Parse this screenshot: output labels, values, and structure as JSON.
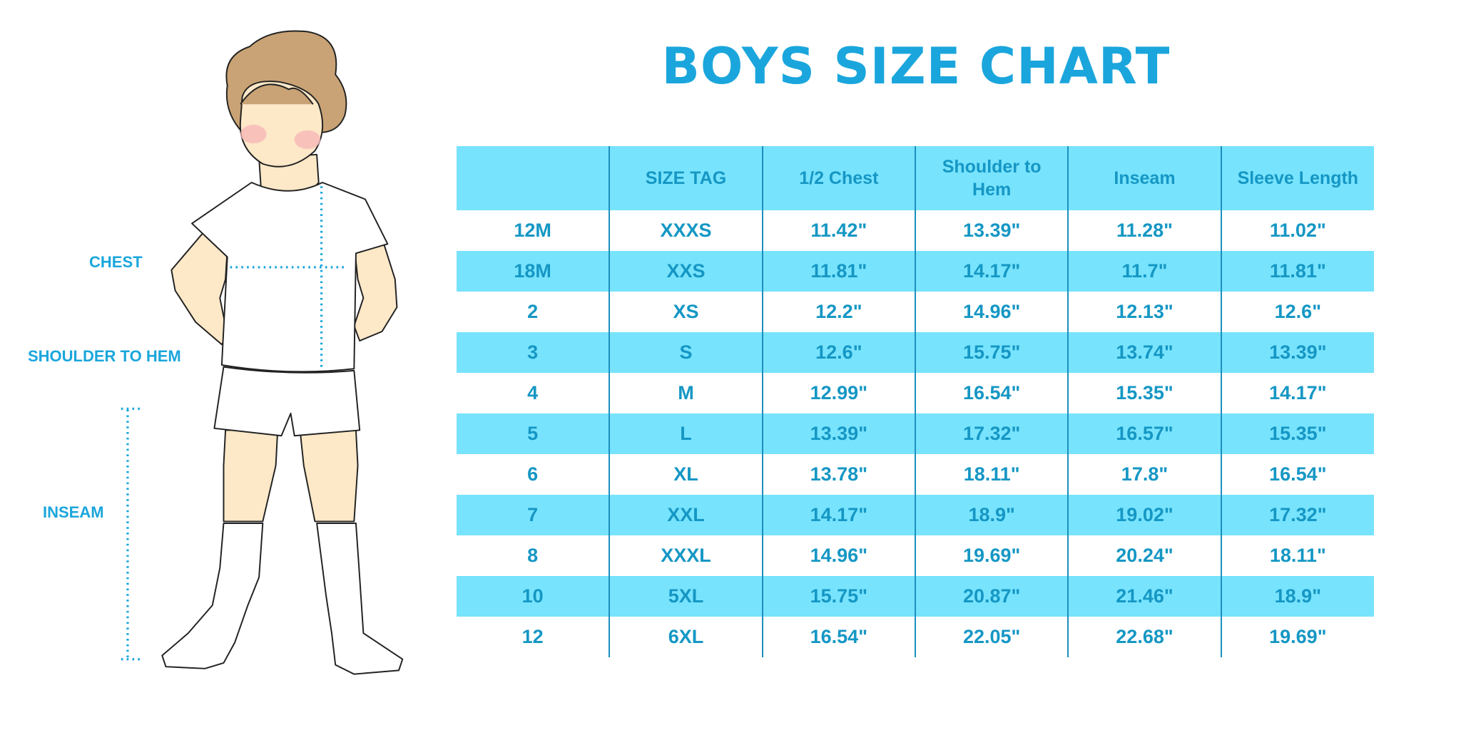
{
  "title": "BOYS SIZE CHART",
  "colors": {
    "accent": "#1aa6dc",
    "header_bg": "#77e3fd",
    "stripe_bg": "#77e3fd",
    "text": "#1597c4",
    "divider": "#1b8fbe",
    "hair": "#c9a375",
    "skin": "#fde8c8"
  },
  "illustration": {
    "labels": {
      "chest": "CHEST",
      "shoulder_to_hem": "SHOULDER TO HEM",
      "inseam": "INSEAM"
    }
  },
  "table": {
    "headers": [
      "",
      "SIZE TAG",
      "1/2 Chest",
      "Shoulder to Hem",
      "Inseam",
      "Sleeve Length"
    ],
    "rows": [
      [
        "12M",
        "XXXS",
        "11.42\"",
        "13.39\"",
        "11.28\"",
        "11.02\""
      ],
      [
        "18M",
        "XXS",
        "11.81\"",
        "14.17\"",
        "11.7\"",
        "11.81\""
      ],
      [
        "2",
        "XS",
        "12.2\"",
        "14.96\"",
        "12.13\"",
        "12.6\""
      ],
      [
        "3",
        "S",
        "12.6\"",
        "15.75\"",
        "13.74\"",
        "13.39\""
      ],
      [
        "4",
        "M",
        "12.99\"",
        "16.54\"",
        "15.35\"",
        "14.17\""
      ],
      [
        "5",
        "L",
        "13.39\"",
        "17.32\"",
        "16.57\"",
        "15.35\""
      ],
      [
        "6",
        "XL",
        "13.78\"",
        "18.11\"",
        "17.8\"",
        "16.54\""
      ],
      [
        "7",
        "XXL",
        "14.17\"",
        "18.9\"",
        "19.02\"",
        "17.32\""
      ],
      [
        "8",
        "XXXL",
        "14.96\"",
        "19.69\"",
        "20.24\"",
        "18.11\""
      ],
      [
        "10",
        "5XL",
        "15.75\"",
        "20.87\"",
        "21.46\"",
        "18.9\""
      ],
      [
        "12",
        "6XL",
        "16.54\"",
        "22.05\"",
        "22.68\"",
        "19.69\""
      ]
    ]
  }
}
